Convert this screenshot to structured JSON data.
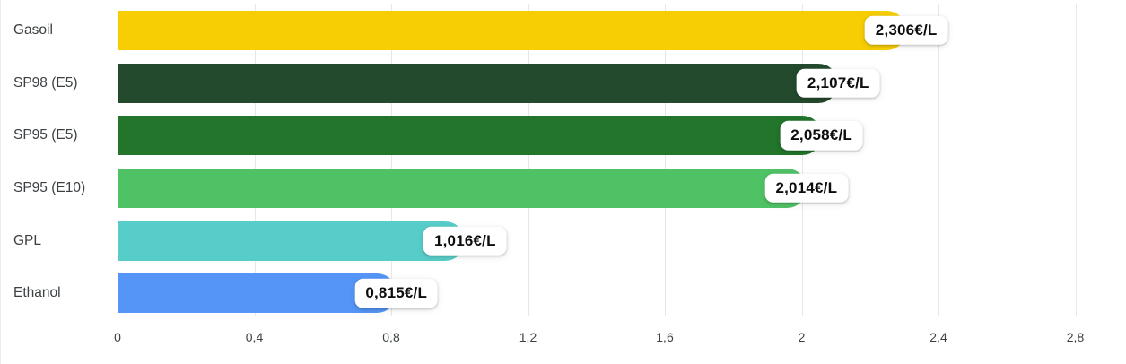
{
  "chart_data": {
    "type": "bar",
    "orientation": "horizontal",
    "title": "",
    "xlabel": "",
    "ylabel": "",
    "categories": [
      "Gasoil",
      "SP98 (E5)",
      "SP95 (E5)",
      "SP95 (E10)",
      "GPL",
      "Ethanol"
    ],
    "values": [
      2.306,
      2.107,
      2.058,
      2.014,
      1.016,
      0.815
    ],
    "value_labels": [
      "2,306€/L",
      "2,107€/L",
      "2,058€/L",
      "2,014€/L",
      "1,016€/L",
      "0,815€/L"
    ],
    "unit": "€/L",
    "bar_colors": [
      "#F7CE04",
      "#244A2D",
      "#22752A",
      "#50C266",
      "#57CDC9",
      "#5495F7"
    ],
    "x_ticks": [
      0,
      0.4,
      0.8,
      1.2,
      1.6,
      2.0,
      2.4,
      2.8
    ],
    "x_tick_labels": [
      "0",
      "0,4",
      "0,8",
      "1,2",
      "1,6",
      "2",
      "2,4",
      "2,8"
    ],
    "xlim": [
      0,
      2.95
    ],
    "grid": "vertical",
    "legend": "none",
    "colors": {
      "background": "#ffffff",
      "gridline": "#e7e7e7",
      "category_text": "#3c4043",
      "tick_text": "#3c4043",
      "value_text": "#0d0d0d",
      "value_pill_bg": "#ffffff"
    }
  }
}
